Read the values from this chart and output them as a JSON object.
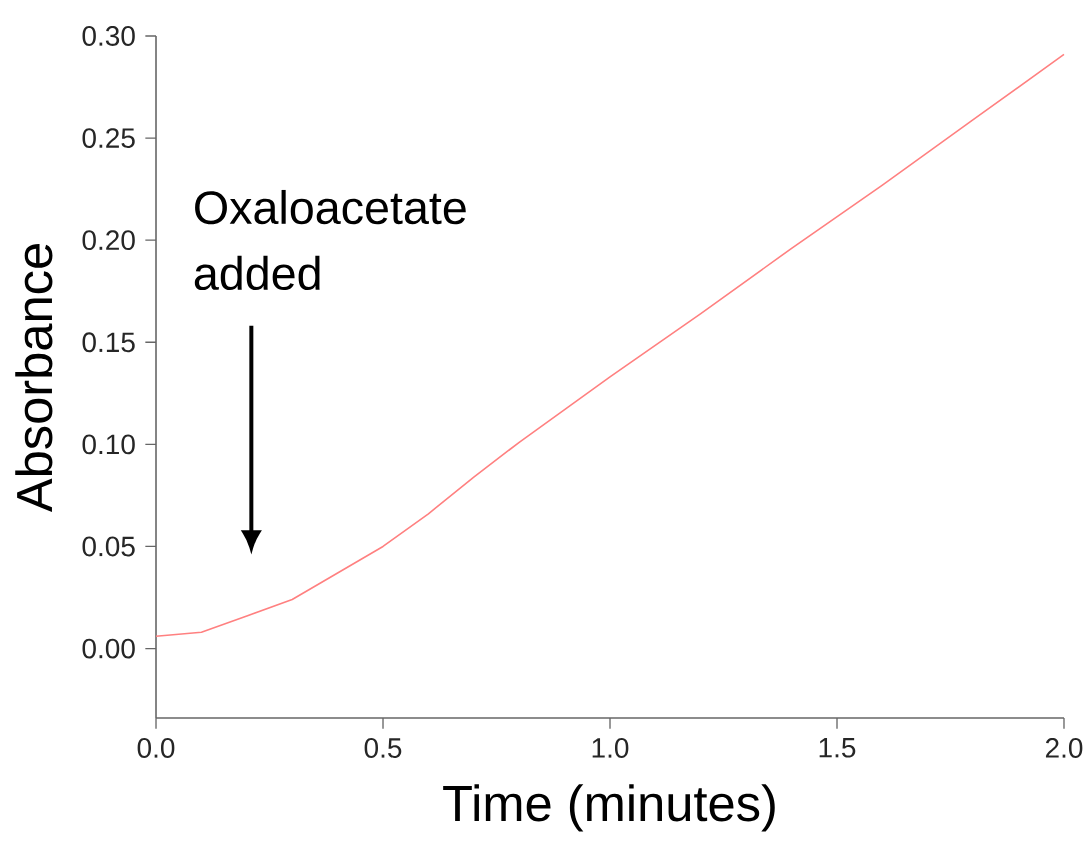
{
  "chart_data": {
    "type": "line",
    "xlabel": "Time (minutes)",
    "ylabel": "Absorbance",
    "x": [
      0,
      0.1,
      0.2,
      0.3,
      0.4,
      0.5,
      0.6,
      0.7,
      0.8,
      0.9,
      1.0,
      1.2,
      1.4,
      1.6,
      1.8,
      2.0
    ],
    "series": [
      {
        "color": "#ff8080",
        "values": [
          0.006,
          0.008,
          0.016,
          0.024,
          0.037,
          0.05,
          0.066,
          0.084,
          0.101,
          0.117,
          0.133,
          0.164,
          0.196,
          0.227,
          0.259,
          0.291
        ]
      }
    ],
    "xlim": [
      0,
      2
    ],
    "ylim": [
      -0.034,
      0.3
    ],
    "xticks": [
      {
        "value": 0,
        "label": "0.0"
      },
      0.5,
      {
        "value": 1,
        "label": "1.0"
      },
      1.5,
      {
        "value": 2,
        "label": "2.0"
      }
    ],
    "yticks": [
      {
        "value": 0,
        "label": "0.00"
      },
      0.05,
      {
        "value": 0.1,
        "label": "0.10"
      },
      0.15,
      {
        "value": 0.2,
        "label": "0.20"
      },
      0.25,
      {
        "value": 0.3,
        "label": "0.30"
      }
    ],
    "annotations": [
      "Oxaloacetate added"
    ],
    "grid": false,
    "marker": "none",
    "line_style": "solid"
  }
}
